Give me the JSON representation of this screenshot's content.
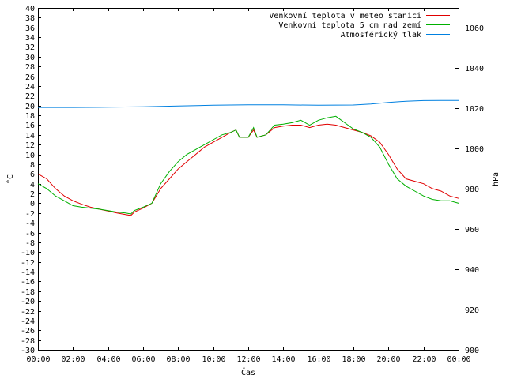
{
  "chart_data": {
    "type": "line",
    "xlabel": "Čas",
    "ylabel_left": "°C",
    "ylabel_right": "hPa",
    "x_ticks": [
      "00:00",
      "02:00",
      "04:00",
      "06:00",
      "08:00",
      "10:00",
      "12:00",
      "14:00",
      "16:00",
      "18:00",
      "20:00",
      "22:00",
      "00:00"
    ],
    "x_range_hours": [
      0,
      24
    ],
    "ylim_left": [
      -30,
      40
    ],
    "y_ticks_left": [
      40,
      38,
      36,
      34,
      32,
      30,
      28,
      26,
      24,
      22,
      20,
      18,
      16,
      14,
      12,
      10,
      8,
      6,
      4,
      2,
      0,
      -2,
      -4,
      -6,
      -8,
      -10,
      -12,
      -14,
      -16,
      -18,
      -20,
      -22,
      -24,
      -26,
      -28,
      -30
    ],
    "ylim_right": [
      900,
      1070
    ],
    "y_ticks_right": [
      1060,
      1040,
      1020,
      1000,
      980,
      960,
      940,
      920,
      900
    ],
    "grid": false,
    "legend_position": "top-right",
    "series": [
      {
        "name": "Venkovní teplota v meteo stanici",
        "color": "#e00000",
        "axis": "left",
        "x": [
          0,
          0.5,
          1,
          1.5,
          2,
          2.5,
          3,
          3.5,
          4,
          4.5,
          5,
          5.3,
          5.5,
          6,
          6.5,
          7,
          7.5,
          8,
          8.5,
          9,
          9.5,
          10,
          10.5,
          11,
          11.3,
          11.5,
          12,
          12.3,
          12.5,
          13,
          13.5,
          14,
          14.5,
          15,
          15.5,
          16,
          16.5,
          17,
          17.5,
          18,
          18.5,
          19,
          19.5,
          20,
          20.5,
          21,
          21.5,
          22,
          22.5,
          23,
          23.5,
          24
        ],
        "y": [
          6,
          5,
          3,
          1.5,
          0.5,
          -0.2,
          -0.8,
          -1.2,
          -1.6,
          -2,
          -2.3,
          -2.5,
          -1.8,
          -1,
          0,
          3,
          5,
          7,
          8.5,
          10,
          11.5,
          12.5,
          13.5,
          14.5,
          15,
          13.5,
          13.5,
          15,
          13.5,
          14,
          15.5,
          15.8,
          16,
          16,
          15.5,
          16,
          16.2,
          16,
          15.5,
          15,
          14.5,
          13.8,
          12.5,
          10,
          7,
          5,
          4.5,
          4,
          3,
          2.5,
          1.5,
          1
        ]
      },
      {
        "name": "Venkovní teplota 5 cm nad zemí",
        "color": "#00b000",
        "axis": "left",
        "x": [
          0,
          0.5,
          1,
          1.5,
          2,
          2.5,
          3,
          3.5,
          4,
          4.5,
          5,
          5.3,
          5.5,
          6,
          6.5,
          7,
          7.5,
          8,
          8.5,
          9,
          9.5,
          10,
          10.5,
          11,
          11.3,
          11.5,
          12,
          12.3,
          12.5,
          13,
          13.5,
          14,
          14.5,
          15,
          15.5,
          16,
          16.5,
          17,
          17.5,
          18,
          18.5,
          19,
          19.5,
          20,
          20.5,
          21,
          21.5,
          22,
          22.5,
          23,
          23.5,
          24
        ],
        "y": [
          4,
          3,
          1.5,
          0.5,
          -0.5,
          -0.8,
          -1,
          -1.2,
          -1.5,
          -1.8,
          -2,
          -2.2,
          -1.5,
          -0.8,
          0,
          4,
          6.5,
          8.5,
          10,
          11,
          12,
          13,
          14,
          14.5,
          15,
          13.5,
          13.5,
          15.5,
          13.5,
          14,
          16,
          16.2,
          16.5,
          17,
          16,
          17,
          17.5,
          17.8,
          16.5,
          15.2,
          14.5,
          13.5,
          11.5,
          8,
          5,
          3.5,
          2.5,
          1.5,
          0.8,
          0.5,
          0.5,
          0
        ]
      },
      {
        "name": "Atmosférický tlak",
        "color": "#0080e0",
        "axis": "right",
        "x": [
          0,
          2,
          4,
          6,
          8,
          10,
          12,
          14,
          16,
          18,
          19,
          20,
          21,
          22,
          23,
          24
        ],
        "y": [
          1020.5,
          1020.5,
          1020.6,
          1020.8,
          1021.2,
          1021.6,
          1021.8,
          1021.8,
          1021.6,
          1021.7,
          1022.2,
          1023,
          1023.6,
          1023.9,
          1024,
          1024
        ]
      }
    ]
  }
}
